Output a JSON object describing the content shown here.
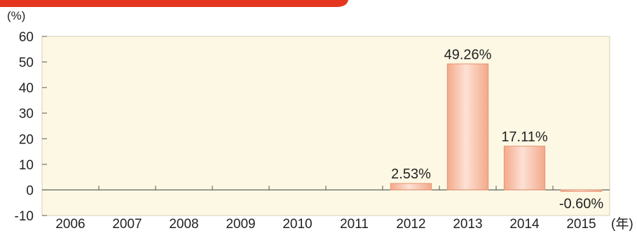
{
  "chart_data": {
    "type": "bar",
    "y_unit": "(%)",
    "x_unit": "(年)",
    "categories": [
      "2006",
      "2007",
      "2008",
      "2009",
      "2010",
      "2011",
      "2012",
      "2013",
      "2014",
      "2015"
    ],
    "values": [
      null,
      null,
      null,
      null,
      null,
      null,
      2.53,
      49.26,
      17.11,
      -0.6
    ],
    "data_labels": [
      "",
      "",
      "",
      "",
      "",
      "",
      "2.53%",
      "49.26%",
      "17.11%",
      "-0.60%"
    ],
    "ylim": [
      -10,
      60
    ],
    "yticks": [
      "60",
      "50",
      "40",
      "30",
      "20",
      "10",
      "0",
      "-10"
    ],
    "ytick_values": [
      60,
      50,
      40,
      30,
      20,
      10,
      0,
      -10
    ],
    "colors": {
      "plot_background": "#fdf8e4",
      "bar_fill": "#f3a98a",
      "bar_highlight": "#fde1d4",
      "bar_stroke": "#e79576",
      "accent_banner": "#e4351e",
      "axis": "#555555",
      "plot_border": "#d7cfb2"
    }
  }
}
